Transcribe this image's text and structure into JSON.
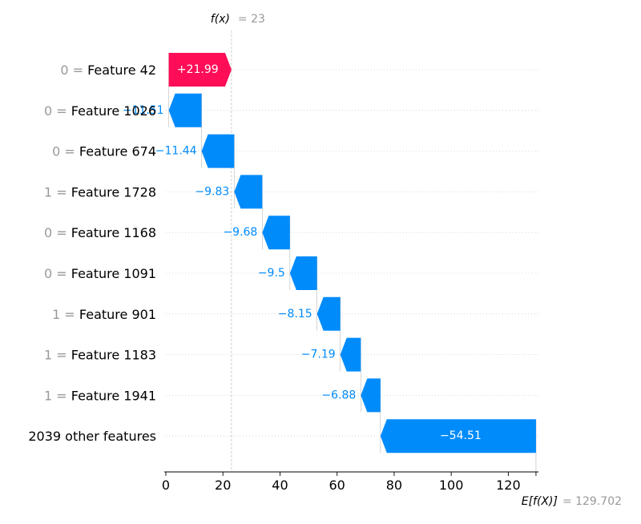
{
  "chart_data": {
    "type": "waterfall",
    "fx_label": "f(x)",
    "fx_value_text": "= 23",
    "fx_value": 23,
    "base_label": "E[f(X)]",
    "base_value_text": "= 129.702",
    "base_value": 129.702,
    "rows": [
      {
        "feature_value": "0 =",
        "feature_name": "Feature 42",
        "contribution": 21.99,
        "label": "+21.99"
      },
      {
        "feature_value": "0 =",
        "feature_name": "Feature 1026",
        "contribution": -11.51,
        "label": "−11.51"
      },
      {
        "feature_value": "0 =",
        "feature_name": "Feature 674",
        "contribution": -11.44,
        "label": "−11.44"
      },
      {
        "feature_value": "1 =",
        "feature_name": "Feature 1728",
        "contribution": -9.83,
        "label": "−9.83"
      },
      {
        "feature_value": "0 =",
        "feature_name": "Feature 1168",
        "contribution": -9.68,
        "label": "−9.68"
      },
      {
        "feature_value": "0 =",
        "feature_name": "Feature 1091",
        "contribution": -9.5,
        "label": "−9.5"
      },
      {
        "feature_value": "1 =",
        "feature_name": "Feature 901",
        "contribution": -8.15,
        "label": "−8.15"
      },
      {
        "feature_value": "1 =",
        "feature_name": "Feature 1183",
        "contribution": -7.19,
        "label": "−7.19"
      },
      {
        "feature_value": "1 =",
        "feature_name": "Feature 1941",
        "contribution": -6.88,
        "label": "−6.88"
      },
      {
        "feature_value": "",
        "feature_name": "2039 other features",
        "contribution": -54.51,
        "label": "−54.51"
      }
    ],
    "x_ticks": [
      0,
      20,
      40,
      60,
      80,
      100,
      120
    ],
    "xlim": [
      0,
      130
    ],
    "colors": {
      "positive": "#ff0d57",
      "negative": "#008bfb",
      "muted": "#999999",
      "text": "#000000"
    }
  }
}
